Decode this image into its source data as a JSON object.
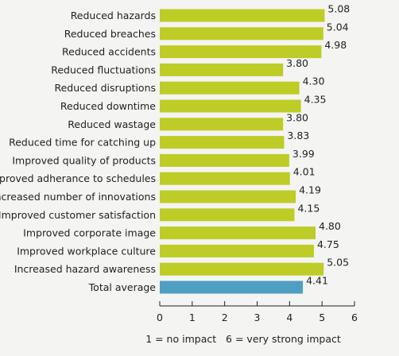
{
  "chart_data": {
    "type": "bar",
    "orientation": "horizontal",
    "categories": [
      "Reduced hazards",
      "Reduced breaches",
      "Reduced accidents",
      "Reduced fluctuations",
      "Reduced disruptions",
      "Reduced downtime",
      "Reduced wastage",
      "Reduced time for catching up",
      "Improved quality of products",
      "Improved adherance to schedules",
      "Increased number of innovations",
      "Improved customer satisfaction",
      "Improved corporate image",
      "Improved workplace culture",
      "Increased hazard awareness",
      "Total average"
    ],
    "values": [
      5.08,
      5.04,
      4.98,
      3.8,
      4.3,
      4.35,
      3.8,
      3.83,
      3.99,
      4.01,
      4.19,
      4.15,
      4.8,
      4.75,
      5.05,
      4.41
    ],
    "value_labels": [
      "5.08",
      "5.04",
      "4.98",
      "3.80",
      "4.30",
      "4.35",
      "3.80",
      "3.83",
      "3.99",
      "4.01",
      "4.19",
      "4.15",
      "4.80",
      "4.75",
      "5.05",
      "4.41"
    ],
    "highlight_category": "Total average",
    "xlim": [
      0,
      6
    ],
    "xticks": [
      "0",
      "1",
      "2",
      "3",
      "4",
      "5",
      "6"
    ],
    "legend_text": "1 = no impact   6 = very strong impact",
    "grid": false,
    "colors": {
      "bar": "#bdcc26",
      "highlight": "#4e9fc2",
      "background": "#f4f4f2",
      "axis": "#222222"
    }
  }
}
